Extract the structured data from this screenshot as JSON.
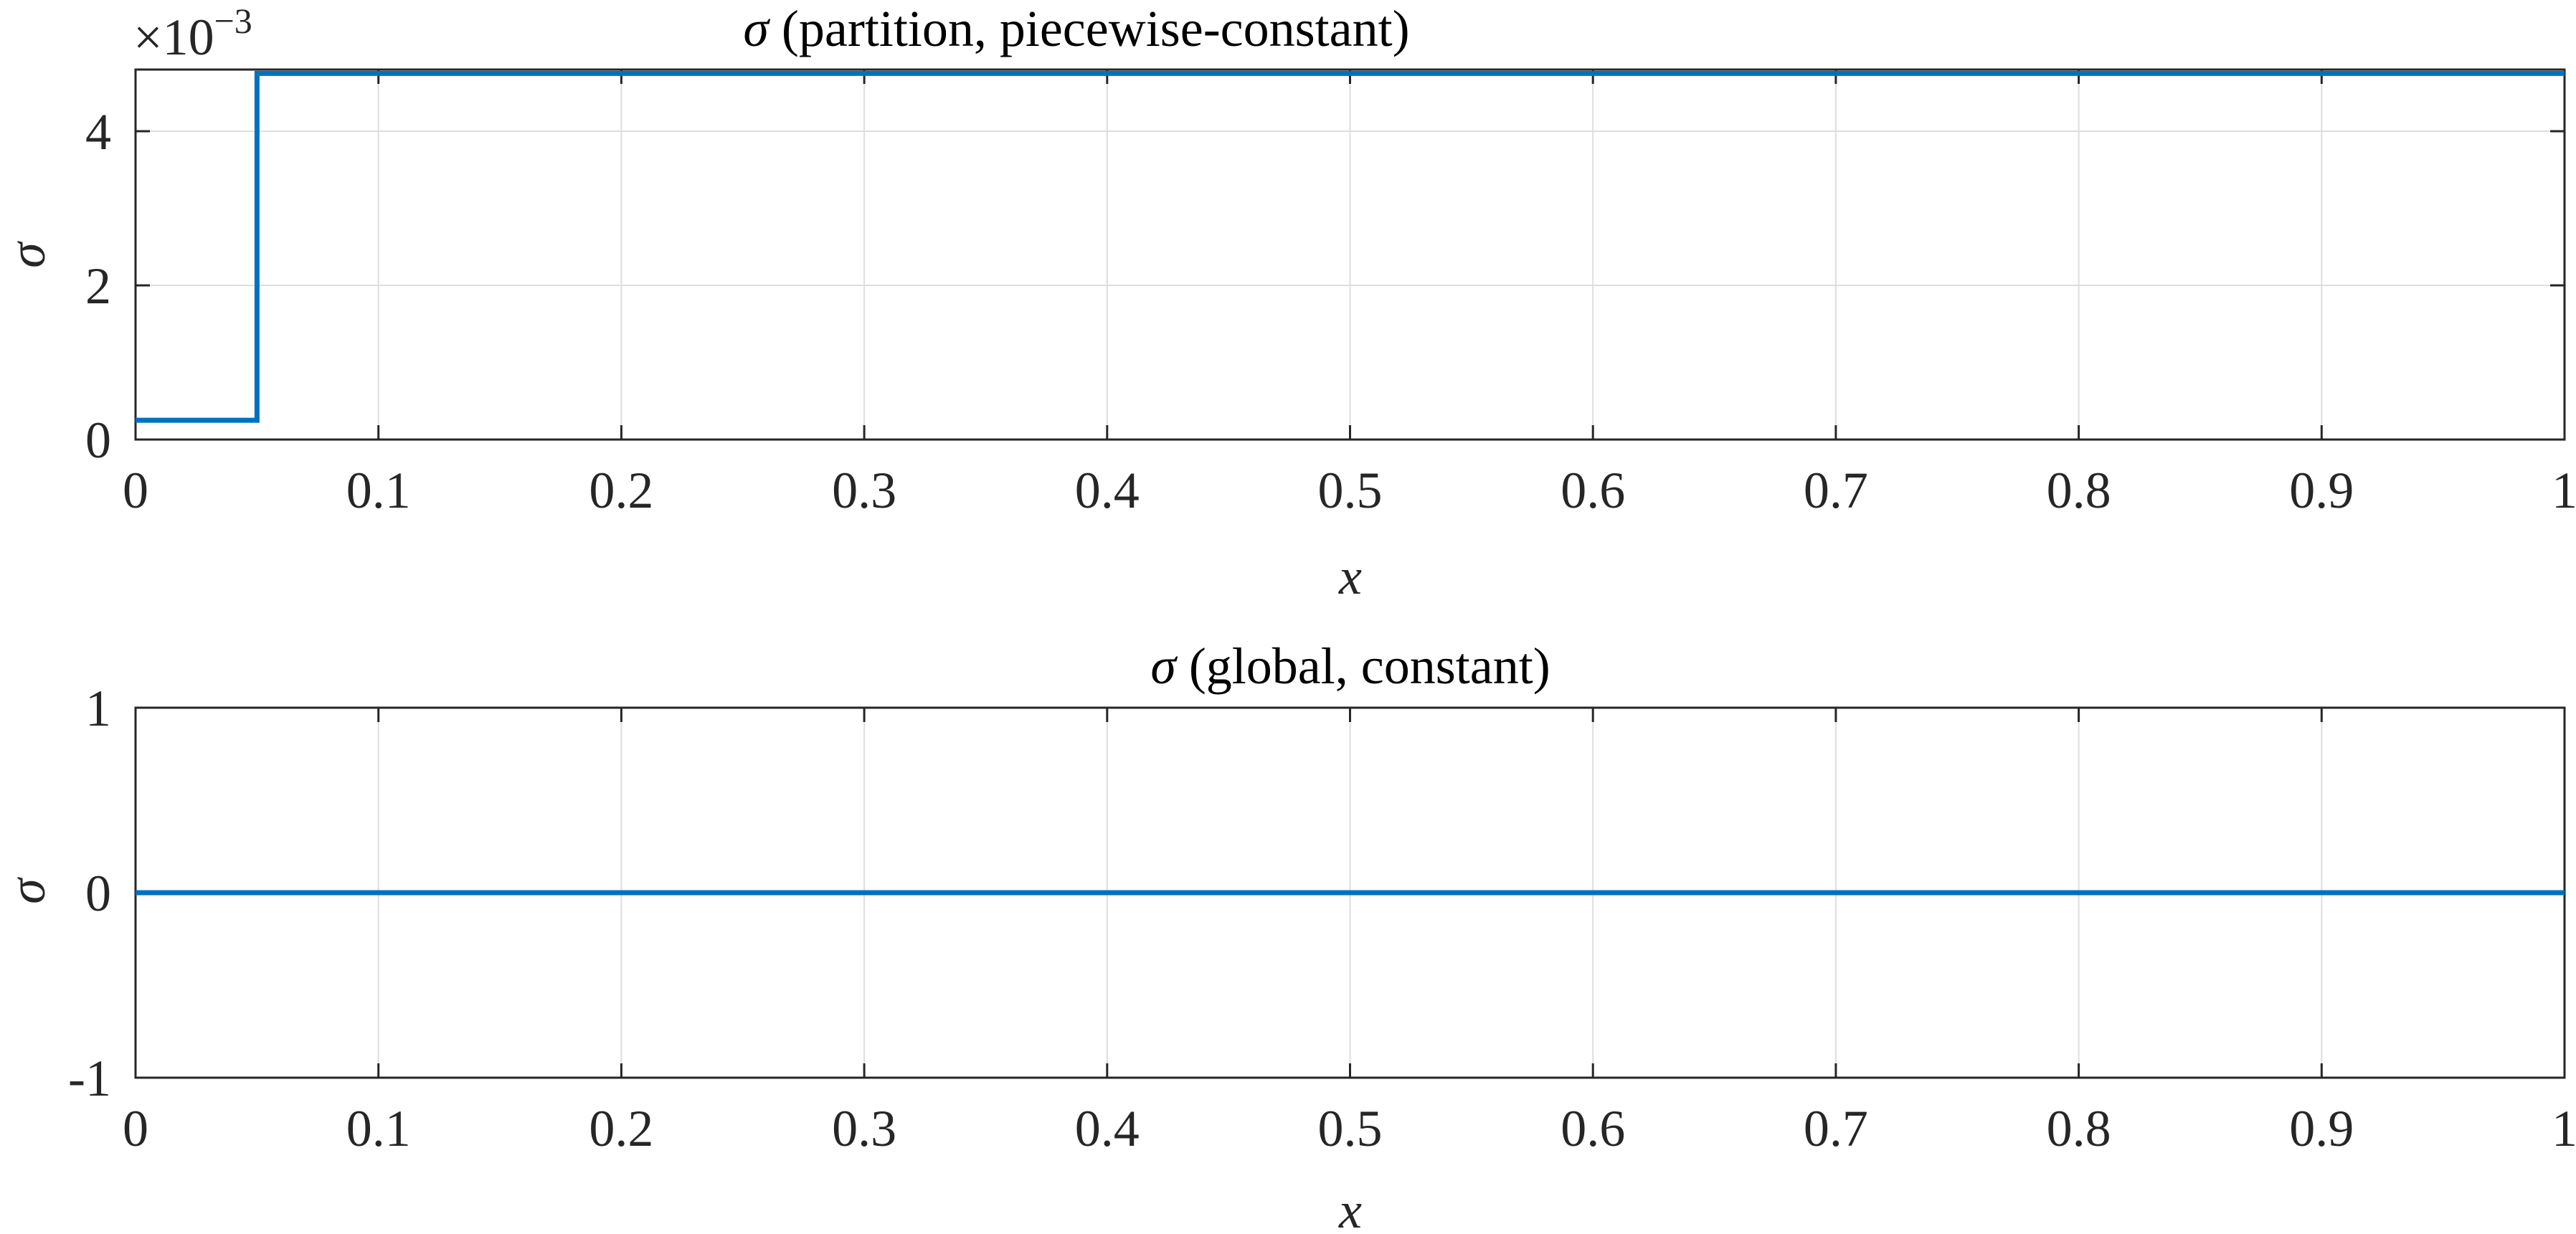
{
  "colors": {
    "series": "#0072bd",
    "axis": "#262626",
    "grid": "#dedede"
  },
  "chart_data": [
    {
      "type": "line",
      "title_symbol": "σ",
      "title_text": " (partition, piecewise-constant)",
      "xlabel": "x",
      "ylabel": "σ",
      "xlim": [
        0,
        1
      ],
      "ylim": [
        0,
        0.0048
      ],
      "scale_multiplier": "×10",
      "scale_exponent": "−3",
      "xticks": [
        0,
        0.1,
        0.2,
        0.3,
        0.4,
        0.5,
        0.6,
        0.7,
        0.8,
        0.9,
        1
      ],
      "xtick_labels": [
        "0",
        "0.1",
        "0.2",
        "0.3",
        "0.4",
        "0.5",
        "0.6",
        "0.7",
        "0.8",
        "0.9",
        "1"
      ],
      "yticks": [
        0,
        0.002,
        0.004
      ],
      "ytick_labels": [
        "0",
        "2",
        "4"
      ],
      "grid": true,
      "series": [
        {
          "x": [
            0,
            0.05,
            0.05,
            1
          ],
          "y": [
            0.00025,
            0.00025,
            0.00475,
            0.00475
          ]
        }
      ]
    },
    {
      "type": "line",
      "title_symbol": "σ",
      "title_text": " (global, constant)",
      "xlabel": "x",
      "ylabel": "σ",
      "xlim": [
        0,
        1
      ],
      "ylim": [
        -1,
        1
      ],
      "xticks": [
        0,
        0.1,
        0.2,
        0.3,
        0.4,
        0.5,
        0.6,
        0.7,
        0.8,
        0.9,
        1
      ],
      "xtick_labels": [
        "0",
        "0.1",
        "0.2",
        "0.3",
        "0.4",
        "0.5",
        "0.6",
        "0.7",
        "0.8",
        "0.9",
        "1"
      ],
      "yticks": [
        -1,
        0,
        1
      ],
      "ytick_labels": [
        "-1",
        "0",
        "1"
      ],
      "grid": true,
      "series": [
        {
          "x": [
            0,
            1
          ],
          "y": [
            0,
            0
          ]
        }
      ]
    }
  ]
}
